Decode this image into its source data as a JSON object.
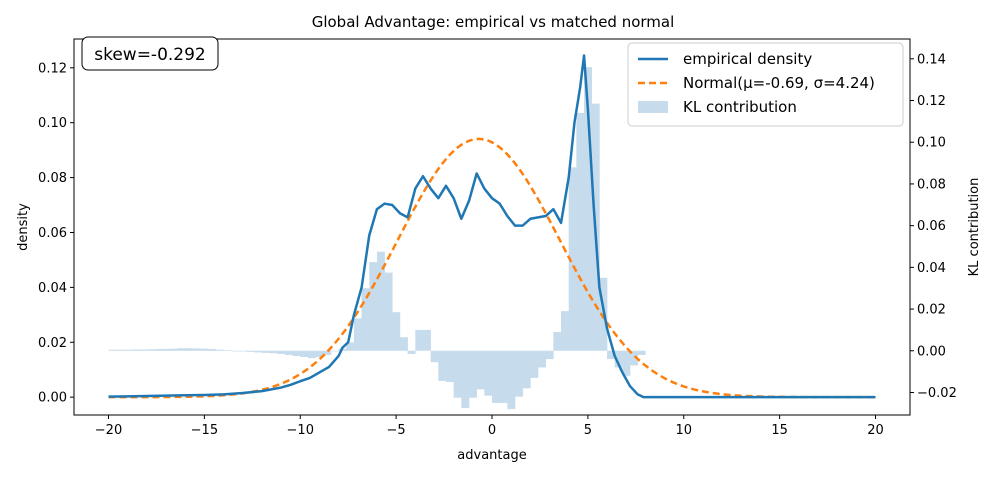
{
  "chart_data": {
    "type": "line",
    "title": "Global Advantage: empirical vs matched normal",
    "xlabel": "advantage",
    "ylabel": "density",
    "y2label": "KL contribution",
    "xlim": [
      -21.8,
      21.8
    ],
    "ylim": [
      -0.0065,
      0.1305
    ],
    "y2lim": [
      -0.0308,
      0.1495
    ],
    "xticks": [
      -20,
      -15,
      -10,
      -5,
      0,
      5,
      10,
      15,
      20
    ],
    "xtick_labels": [
      "−20",
      "−15",
      "−10",
      "−5",
      "0",
      "5",
      "10",
      "15",
      "20"
    ],
    "yticks": [
      0.0,
      0.02,
      0.04,
      0.06,
      0.08,
      0.1,
      0.12
    ],
    "ytick_labels": [
      "0.00",
      "0.02",
      "0.04",
      "0.06",
      "0.08",
      "0.10",
      "0.12"
    ],
    "y2ticks": [
      -0.02,
      0.0,
      0.02,
      0.04,
      0.06,
      0.08,
      0.1,
      0.12,
      0.14
    ],
    "y2tick_labels": [
      "−0.02",
      "0.00",
      "0.02",
      "0.04",
      "0.06",
      "0.08",
      "0.10",
      "0.12",
      "0.14"
    ],
    "annotation": "skew=-0.292",
    "legend_position": "top-right",
    "legend": [
      "empirical density",
      "Normal(μ=-0.69, σ=4.24)",
      "KL contribution"
    ],
    "colors": {
      "empirical": "#1f77b4",
      "normal": "#ff7f0e",
      "kl": "#c6dbec"
    },
    "normal_params": {
      "mu": -0.69,
      "sigma": 4.24
    },
    "series": [
      {
        "name": "empirical density",
        "x": [
          -20.0,
          -18.0,
          -16.0,
          -15.0,
          -14.0,
          -13.0,
          -12.0,
          -11.0,
          -10.5,
          -10.0,
          -9.5,
          -9.0,
          -8.5,
          -8.0,
          -7.8,
          -7.5,
          -7.2,
          -6.8,
          -6.4,
          -6.0,
          -5.6,
          -5.2,
          -4.8,
          -4.4,
          -4.0,
          -3.6,
          -3.2,
          -2.8,
          -2.4,
          -2.0,
          -1.6,
          -1.2,
          -0.8,
          -0.4,
          0.0,
          0.4,
          0.8,
          1.2,
          1.6,
          2.0,
          2.4,
          2.8,
          3.2,
          3.6,
          4.0,
          4.3,
          4.6,
          4.8,
          5.0,
          5.3,
          5.6,
          6.0,
          6.4,
          6.8,
          7.2,
          7.6,
          7.9,
          8.2,
          10.0,
          15.0,
          20.0
        ],
        "y": [
          0.0002,
          0.0004,
          0.0007,
          0.0008,
          0.001,
          0.0015,
          0.0022,
          0.0035,
          0.0045,
          0.0058,
          0.007,
          0.009,
          0.011,
          0.015,
          0.018,
          0.02,
          0.03,
          0.04,
          0.059,
          0.0685,
          0.0705,
          0.07,
          0.067,
          0.0655,
          0.076,
          0.0805,
          0.076,
          0.0725,
          0.077,
          0.0725,
          0.065,
          0.0715,
          0.0815,
          0.076,
          0.0725,
          0.0705,
          0.066,
          0.0625,
          0.0625,
          0.065,
          0.0655,
          0.066,
          0.0685,
          0.0635,
          0.08,
          0.1,
          0.113,
          0.1245,
          0.105,
          0.07,
          0.04,
          0.025,
          0.015,
          0.009,
          0.004,
          0.001,
          0.0,
          0.0,
          0.0,
          0.0,
          0.0
        ]
      },
      {
        "name": "Normal(μ=-0.69, σ=4.24)",
        "style": "dashed"
      }
    ],
    "kl_bins": {
      "x_start": [
        -20.0,
        -19.6,
        -19.2,
        -18.8,
        -18.4,
        -18.0,
        -17.6,
        -17.2,
        -16.8,
        -16.4,
        -16.0,
        -15.6,
        -15.2,
        -14.8,
        -14.4,
        -14.0,
        -13.6,
        -13.2,
        -12.8,
        -12.4,
        -12.0,
        -11.6,
        -11.2,
        -10.8,
        -10.4,
        -10.0,
        -9.6,
        -9.2,
        -8.8,
        -8.4,
        -8.0,
        -7.6,
        -7.2,
        -6.8,
        -6.4,
        -6.0,
        -5.6,
        -5.2,
        -4.8,
        -4.4,
        -4.0,
        -3.6,
        -3.2,
        -2.8,
        -2.4,
        -2.0,
        -1.6,
        -1.2,
        -0.8,
        -0.4,
        0.0,
        0.4,
        0.8,
        1.2,
        1.6,
        2.0,
        2.4,
        2.8,
        3.2,
        3.6,
        4.0,
        4.4,
        4.8,
        5.2,
        5.6,
        6.0,
        6.4,
        6.8,
        7.2,
        7.6
      ],
      "width": 0.4,
      "values": [
        0.0005,
        0.0005,
        0.0005,
        0.0006,
        0.0006,
        0.0007,
        0.0008,
        0.0009,
        0.001,
        0.0012,
        0.0012,
        0.0011,
        0.001,
        0.0008,
        0.0005,
        0.0002,
        0.0,
        -0.0003,
        -0.0005,
        -0.0008,
        -0.001,
        -0.0012,
        -0.0015,
        -0.002,
        -0.0025,
        -0.003,
        -0.0035,
        -0.003,
        -0.002,
        0.0,
        0.001,
        0.004,
        0.0155,
        0.03,
        0.0425,
        0.0475,
        0.0375,
        0.0185,
        0.0065,
        -0.0015,
        0.01,
        0.01,
        -0.0055,
        -0.0145,
        -0.015,
        -0.0225,
        -0.0275,
        -0.0225,
        -0.0185,
        -0.0215,
        -0.025,
        -0.025,
        -0.028,
        -0.022,
        -0.018,
        -0.013,
        -0.008,
        -0.004,
        0.009,
        0.019,
        0.088,
        0.114,
        0.136,
        0.1185,
        0.035,
        -0.004,
        -0.008,
        -0.012,
        -0.007,
        -0.002
      ]
    }
  }
}
